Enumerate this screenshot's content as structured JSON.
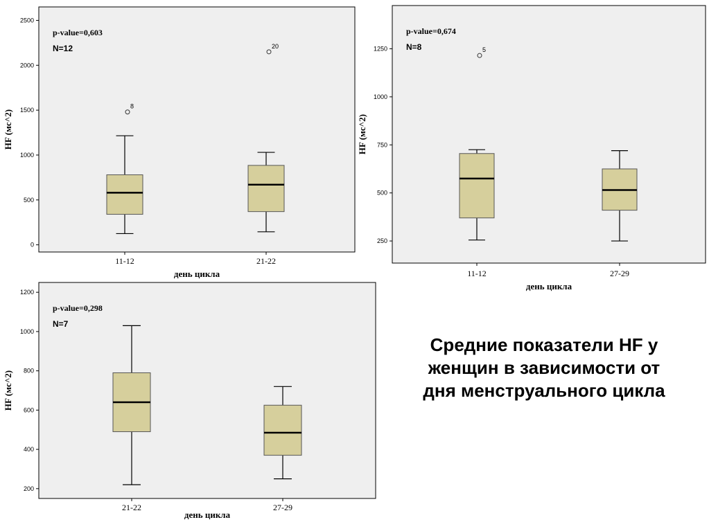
{
  "caption": "Средние показатели HF у женщин в зависимости от дня менструального цикла",
  "colors": {
    "box_fill": "#d6cf9c",
    "plot_bg": "#efefef",
    "line": "#000000"
  },
  "chart_data": [
    {
      "type": "box",
      "annotation_p": "p-value=0,603",
      "annotation_n": "N=12",
      "xlabel": "день цикла",
      "ylabel": "HF (мс^2)",
      "ylim": [
        -80,
        2650
      ],
      "yticks": [
        0,
        500,
        1000,
        1500,
        2000,
        2500
      ],
      "categories": [
        "11-12",
        "21-22"
      ],
      "boxes": [
        {
          "min": 125,
          "q1": 340,
          "median": 580,
          "q3": 780,
          "max": 1215,
          "outliers": [
            {
              "value": 1480,
              "label": "8"
            }
          ]
        },
        {
          "min": 145,
          "q1": 370,
          "median": 670,
          "q3": 885,
          "max": 1030,
          "outliers": [
            {
              "value": 2150,
              "label": "20"
            }
          ]
        }
      ]
    },
    {
      "type": "box",
      "annotation_p": "p-value=0,674",
      "annotation_n": "N=8",
      "xlabel": "день цикла",
      "ylabel": "HF (мс^2)",
      "ylim": [
        135,
        1475
      ],
      "yticks": [
        250,
        500,
        750,
        1000,
        1250
      ],
      "categories": [
        "11-12",
        "27-29"
      ],
      "boxes": [
        {
          "min": 255,
          "q1": 370,
          "median": 575,
          "q3": 705,
          "max": 725,
          "outliers": [
            {
              "value": 1215,
              "label": "5"
            }
          ]
        },
        {
          "min": 250,
          "q1": 410,
          "median": 515,
          "q3": 625,
          "max": 720,
          "outliers": []
        }
      ]
    },
    {
      "type": "box",
      "annotation_p": "p-value=0,298",
      "annotation_n": "N=7",
      "xlabel": "день цикла",
      "ylabel": "HF (мс^2)",
      "ylim": [
        150,
        1250
      ],
      "yticks": [
        200,
        400,
        600,
        800,
        1000,
        1200
      ],
      "categories": [
        "21-22",
        "27-29"
      ],
      "boxes": [
        {
          "min": 220,
          "q1": 490,
          "median": 640,
          "q3": 790,
          "max": 1030,
          "outliers": []
        },
        {
          "min": 250,
          "q1": 370,
          "median": 485,
          "q3": 625,
          "max": 720,
          "outliers": []
        }
      ]
    }
  ]
}
